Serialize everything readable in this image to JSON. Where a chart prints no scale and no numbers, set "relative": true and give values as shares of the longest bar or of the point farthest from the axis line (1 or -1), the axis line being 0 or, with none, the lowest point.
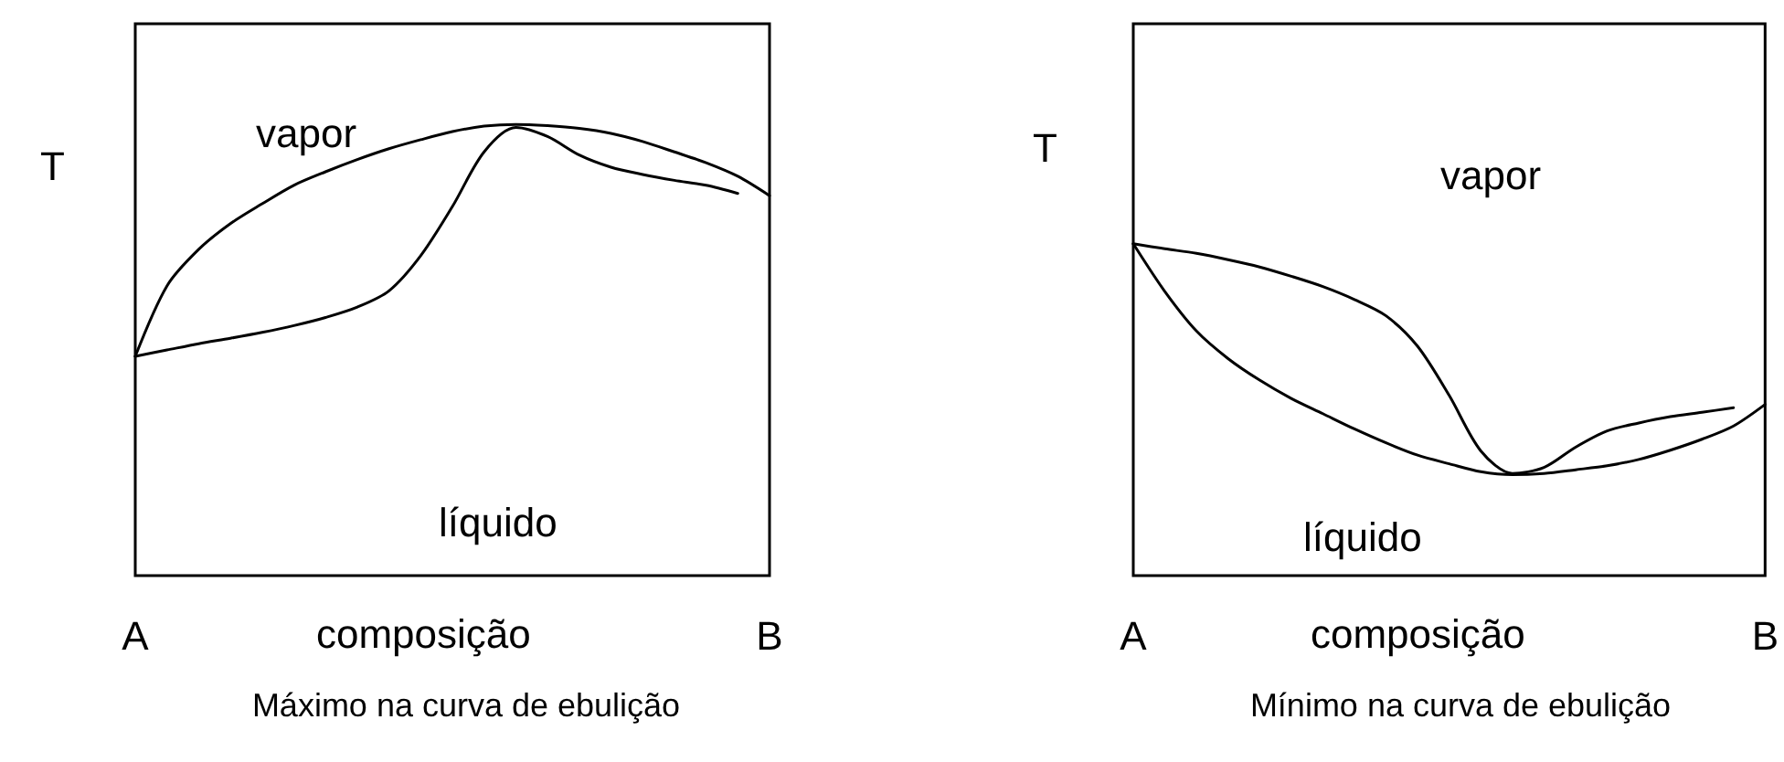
{
  "chart_data": [
    {
      "type": "line",
      "title": "Máximo na curva de ebulição",
      "xlabel": "composição",
      "ylabel": "T",
      "annotations": [
        "vapor",
        "líquido"
      ],
      "relative": true,
      "marker": "none",
      "grid": false,
      "categories": [
        "A",
        null,
        null,
        null,
        null,
        null,
        null,
        null,
        null,
        null,
        null,
        null,
        null,
        null,
        null,
        null,
        null,
        null,
        null,
        null,
        "B"
      ],
      "series": [
        {
          "color": "#000000",
          "values": [
            0.486,
            0.642,
            0.723,
            0.78,
            0.824,
            0.865,
            0.895,
            0.922,
            0.946,
            0.966,
            0.984,
            0.996,
            1,
            0.997,
            0.991,
            0.98,
            0.962,
            0.939,
            0.915,
            0.885,
            0.842
          ]
        },
        {
          "color": "#000000",
          "values": [
            0.486,
            0.5,
            0.514,
            0.526,
            0.539,
            0.554,
            0.572,
            0.595,
            0.631,
            0.709,
            0.818,
            0.939,
            0.993,
            0.973,
            0.932,
            0.905,
            0.889,
            0.876,
            0.865,
            0.847,
            null
          ]
        }
      ]
    },
    {
      "type": "line",
      "title": "Mínimo na curva de ebulição",
      "xlabel": "composição",
      "ylabel": "T",
      "annotations": [
        "vapor",
        "líquido"
      ],
      "relative": true,
      "marker": "none",
      "grid": false,
      "categories": [
        "A",
        null,
        null,
        null,
        null,
        null,
        null,
        null,
        null,
        null,
        null,
        null,
        null,
        null,
        null,
        null,
        null,
        null,
        null,
        null,
        "B"
      ],
      "series": [
        {
          "color": "#000000",
          "values": [
            1,
            0.985,
            0.971,
            0.952,
            0.93,
            0.902,
            0.871,
            0.832,
            0.783,
            0.691,
            0.543,
            0.376,
            0.308,
            0.326,
            0.387,
            0.436,
            0.46,
            0.479,
            0.492,
            0.506,
            null
          ]
        },
        {
          "color": "#000000",
          "values": [
            1,
            0.856,
            0.737,
            0.654,
            0.589,
            0.534,
            0.488,
            0.442,
            0.4,
            0.363,
            0.337,
            0.313,
            0.304,
            0.308,
            0.319,
            0.331,
            0.35,
            0.378,
            0.411,
            0.451,
            0.516
          ]
        }
      ]
    }
  ]
}
